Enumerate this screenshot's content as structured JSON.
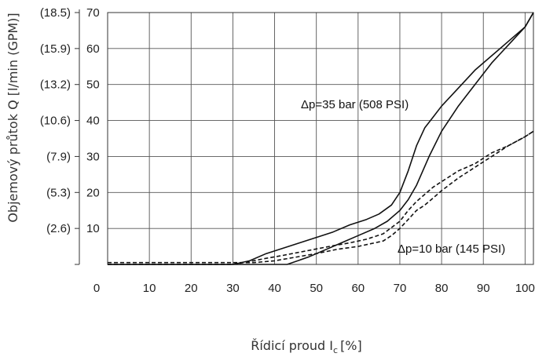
{
  "chart_data": {
    "type": "line",
    "title": "",
    "xlabel": "Řídicí proud I",
    "xlabel_subscript": "c",
    "xlabel_unit": "[%]",
    "ylabel": "Objemový průtok Q [l/min (GPM)]",
    "xlim": [
      0,
      102
    ],
    "ylim": [
      0,
      70
    ],
    "x_ticks": [
      0,
      10,
      20,
      30,
      40,
      50,
      60,
      70,
      80,
      90,
      100
    ],
    "y_ticks": [
      10,
      20,
      30,
      40,
      50,
      60,
      70
    ],
    "y_ticks_secondary": [
      "(2.6)",
      "(5.3)",
      "(7.9)",
      "(10.6)",
      "(13.2)",
      "(15.9)",
      "(18.5)"
    ],
    "grid": true,
    "annotations": [
      {
        "text": "Δp=35 bar (508 PSI)",
        "series": "35 bar"
      },
      {
        "text": "Δp=10 bar (145 PSI)",
        "series": "10 bar"
      }
    ],
    "series": [
      {
        "line_style": "solid",
        "x": [
          0,
          43,
          48,
          52,
          56,
          60,
          64,
          67,
          70,
          72,
          74,
          77,
          80,
          84,
          88,
          92,
          96,
          100,
          102
        ],
        "y": [
          0,
          0,
          2,
          4,
          6,
          8,
          10,
          12,
          15,
          18,
          22,
          30,
          37,
          44,
          50,
          56,
          61,
          66,
          70
        ]
      },
      {
        "line_style": "solid",
        "x": [
          0,
          30,
          34,
          38,
          42,
          46,
          50,
          54,
          58,
          62,
          65,
          68,
          70,
          72,
          74,
          76,
          78,
          80,
          84,
          88,
          92,
          96,
          100,
          102
        ],
        "y": [
          0,
          0,
          1,
          3,
          4.5,
          6,
          7.5,
          9,
          11,
          12.5,
          14,
          16.5,
          20,
          26,
          33,
          38,
          41,
          44,
          49,
          54,
          58,
          62,
          66,
          70
        ]
      },
      {
        "line_style": "dashed",
        "x": [
          0,
          30,
          34,
          38,
          42,
          46,
          50,
          54,
          58,
          62,
          66,
          70,
          72,
          74,
          76,
          78,
          80,
          84,
          88,
          92,
          96,
          100,
          102
        ],
        "y": [
          0,
          0,
          0.8,
          1.7,
          2.5,
          3.4,
          4.3,
          5.2,
          6,
          7,
          8.5,
          12,
          15,
          17.5,
          19.5,
          21.5,
          23,
          26,
          28,
          31,
          33,
          35.5,
          37
        ]
      },
      {
        "line_style": "dashed",
        "x": [
          0,
          30,
          35,
          40,
          45,
          50,
          55,
          60,
          64,
          66,
          68,
          70,
          72,
          74,
          76,
          78,
          80,
          84,
          88,
          92,
          96,
          100,
          102
        ],
        "y": [
          0.5,
          0.5,
          0.5,
          1,
          2,
          3,
          4.2,
          5,
          6,
          6.5,
          8,
          10,
          12.5,
          15,
          16.5,
          18.5,
          20.5,
          24,
          27,
          30,
          33,
          35.5,
          37
        ]
      }
    ]
  }
}
